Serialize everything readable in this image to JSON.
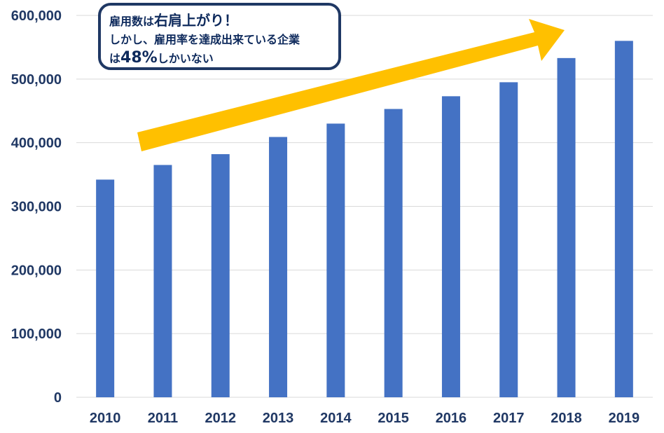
{
  "chart_data": {
    "type": "bar",
    "categories": [
      "2010",
      "2011",
      "2012",
      "2013",
      "2014",
      "2015",
      "2016",
      "2017",
      "2018",
      "2019"
    ],
    "values": [
      342000,
      365000,
      382000,
      409000,
      430000,
      453000,
      473000,
      495000,
      533000,
      560000
    ],
    "ylim": [
      0,
      600000
    ],
    "yticks": [
      "0",
      "100,000",
      "200,000",
      "300,000",
      "400,000",
      "500,000",
      "600,000"
    ],
    "grid": true,
    "colors": {
      "bar": "#4472c4",
      "arrow": "#ffc000",
      "axis_text": "#203864",
      "grid": "#d9d9d9"
    }
  },
  "callout": {
    "line1_small": "雇用数は",
    "line1_big": "右肩上がり！",
    "line2": "しかし、雇用率を達成出来ている企業",
    "line3_small_a": "は",
    "line3_big": "48%",
    "line3_small_b": "しかいない"
  }
}
